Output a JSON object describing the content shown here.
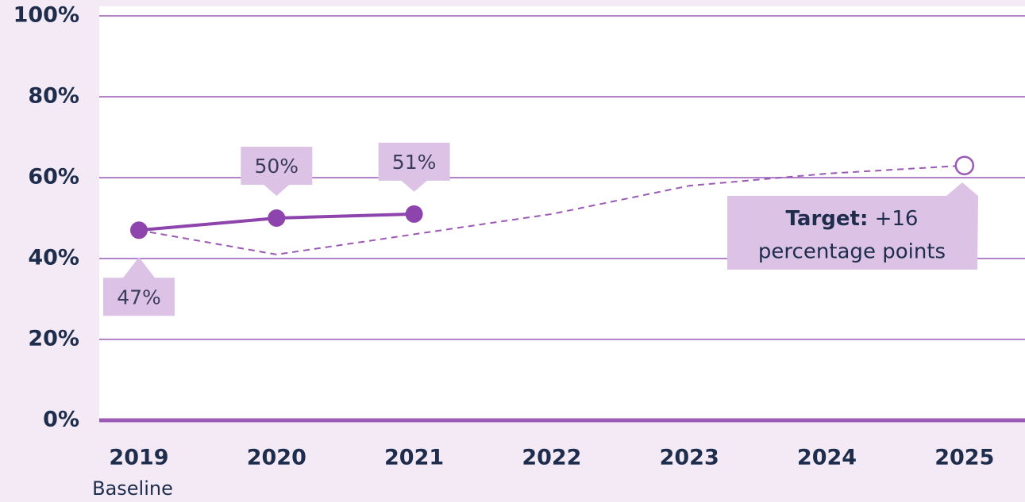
{
  "chart_data": {
    "type": "line",
    "categories": [
      "2019",
      "2020",
      "2021",
      "2022",
      "2023",
      "2024",
      "2025"
    ],
    "category_sublabels": [
      "Baseline",
      null,
      null,
      null,
      null,
      null,
      null
    ],
    "series": [
      {
        "color": "#8e44ad",
        "style": "solid",
        "values": [
          47,
          50,
          51,
          null,
          null,
          null,
          null
        ],
        "value_labels": [
          "47%",
          "50%",
          "51%",
          null,
          null,
          null,
          null
        ]
      },
      {
        "color": "#9b59b6",
        "style": "dashed",
        "values": [
          47,
          41,
          46,
          51,
          58,
          61,
          63
        ]
      }
    ],
    "annotation": {
      "bold": "Target:",
      "text": "+16",
      "line2": "percentage points"
    },
    "ylim": [
      0,
      100
    ],
    "yticks": [
      {
        "value": 0,
        "label": "0%"
      },
      {
        "value": 20,
        "label": "20%"
      },
      {
        "value": 40,
        "label": "40%"
      },
      {
        "value": 60,
        "label": "60%"
      },
      {
        "value": 80,
        "label": "80%"
      },
      {
        "value": 100,
        "label": "100%"
      }
    ],
    "grid": true
  }
}
